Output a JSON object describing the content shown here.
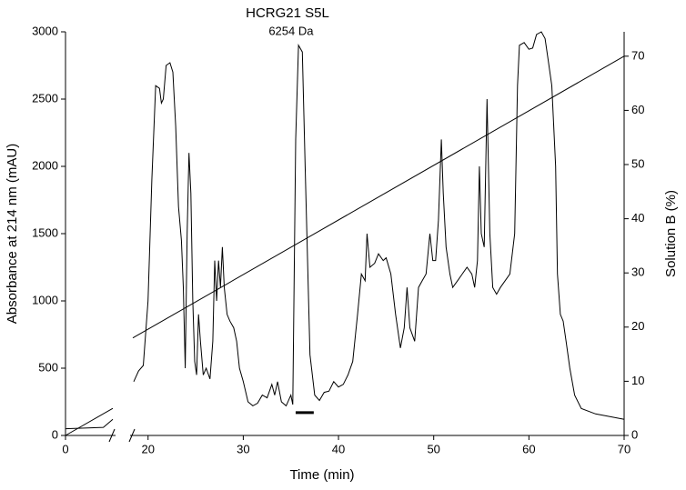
{
  "chart_data": {
    "type": "line",
    "title": "HCRG21 S5L",
    "x_label": "Time (min)",
    "y_label": "Absorbance at 214 nm (mAU)",
    "y2_label": "Solution B (%)",
    "xlim": [
      0,
      70
    ],
    "x_break": [
      5,
      18.4
    ],
    "xticks": [
      0,
      20,
      30,
      40,
      50,
      60,
      70
    ],
    "ylim": [
      0,
      3000
    ],
    "yticks": [
      0,
      500,
      1000,
      1500,
      2000,
      2500,
      3000
    ],
    "y2lim": [
      0,
      74.5
    ],
    "y2ticks": [
      0,
      10,
      20,
      30,
      40,
      50,
      60,
      70
    ],
    "series": [
      {
        "name": "Absorbance at 214 nm (mAU)",
        "color": "#000000",
        "x": [
          0,
          4,
          5,
          18.5,
          19.0,
          19.5,
          20.0,
          20.4,
          20.8,
          21.2,
          21.4,
          21.6,
          21.9,
          22.3,
          22.6,
          22.9,
          23.2,
          23.5,
          23.7,
          23.9,
          24.1,
          24.3,
          24.5,
          24.7,
          24.9,
          25.1,
          25.3,
          25.5,
          25.8,
          26.1,
          26.5,
          26.8,
          27.0,
          27.2,
          27.4,
          27.6,
          27.8,
          28.0,
          28.3,
          28.6,
          29.0,
          29.3,
          29.6,
          30.0,
          30.5,
          31.0,
          31.5,
          32.0,
          32.5,
          33.0,
          33.3,
          33.6,
          34.0,
          34.5,
          35.0,
          35.2,
          35.5,
          35.8,
          36.2,
          36.5,
          37.0,
          37.5,
          38.0,
          38.5,
          39.0,
          39.5,
          40.0,
          40.5,
          41.0,
          41.5,
          42.0,
          42.4,
          42.8,
          43.0,
          43.3,
          43.8,
          44.2,
          44.7,
          45.0,
          45.5,
          46.0,
          46.5,
          46.9,
          47.2,
          47.5,
          48.0,
          48.4,
          48.8,
          49.2,
          49.6,
          49.9,
          50.2,
          50.5,
          50.8,
          51.0,
          51.3,
          51.7,
          52.0,
          52.5,
          53.0,
          53.5,
          54.0,
          54.3,
          54.6,
          54.8,
          55.0,
          55.3,
          55.6,
          55.9,
          56.2,
          56.6,
          57.0,
          57.5,
          58.0,
          58.5,
          58.8,
          59.0,
          59.5,
          60.0,
          60.4,
          60.8,
          61.3,
          61.7,
          62.0,
          62.4,
          62.8,
          63.0,
          63.3,
          63.6,
          63.9,
          64.3,
          64.8,
          65.5,
          67.0,
          68.5,
          70.0
        ],
        "values": [
          50,
          60,
          120,
          400,
          480,
          520,
          1000,
          1900,
          2600,
          2580,
          2470,
          2500,
          2750,
          2770,
          2700,
          2300,
          1700,
          1450,
          1100,
          500,
          1500,
          2100,
          1800,
          1000,
          550,
          450,
          900,
          700,
          450,
          500,
          420,
          700,
          1300,
          1000,
          1300,
          1100,
          1400,
          1100,
          900,
          850,
          800,
          700,
          500,
          400,
          250,
          220,
          240,
          300,
          280,
          380,
          300,
          400,
          250,
          220,
          300,
          230,
          2200,
          2900,
          2850,
          2000,
          600,
          300,
          260,
          320,
          330,
          400,
          360,
          380,
          450,
          550,
          900,
          1200,
          1150,
          1500,
          1250,
          1280,
          1350,
          1300,
          1320,
          1200,
          900,
          650,
          800,
          1100,
          800,
          700,
          1100,
          1150,
          1200,
          1500,
          1300,
          1300,
          1600,
          2200,
          1800,
          1400,
          1200,
          1100,
          1150,
          1200,
          1250,
          1200,
          1100,
          1300,
          2000,
          1500,
          1400,
          2500,
          1500,
          1100,
          1050,
          1100,
          1150,
          1200,
          1500,
          2600,
          2900,
          2920,
          2870,
          2880,
          2980,
          3000,
          2950,
          2800,
          2600,
          2000,
          1200,
          900,
          850,
          700,
          500,
          300,
          200,
          160,
          140,
          120
        ]
      },
      {
        "name": "Solution B (%)",
        "color": "#000000",
        "axis": "y2",
        "x": [
          0,
          5,
          18.4,
          70
        ],
        "values": [
          0,
          5,
          18,
          70
        ]
      }
    ],
    "annotations": [
      {
        "text": "6254 Da",
        "x": [
          35.5,
          37.4
        ],
        "y": 170
      }
    ]
  }
}
